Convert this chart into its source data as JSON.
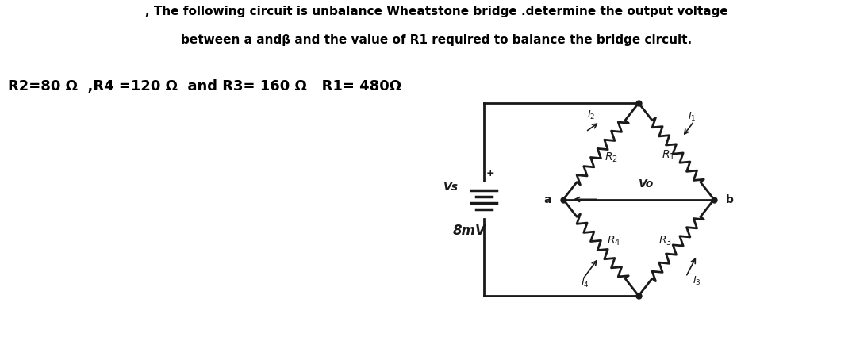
{
  "title_line1": ", The following circuit is unbalance Wheatstone bridge .determine the output voltage",
  "title_line2": "between a andβ and the value of R1 required to balance the bridge circuit.",
  "params_text": "R2=80 Ω  ,R4 =120 Ω  and R3= 160 Ω   R1= 480Ω",
  "bg_color": "#ffffff",
  "circuit_bg": "#f0ede8",
  "cc": "#1a1a1a",
  "vs_label": "Vs",
  "voltage_label": "8mV",
  "vo_label": "Vo",
  "node_a": "a",
  "node_b": "b",
  "r2_label": "R2",
  "r1_label": "R1",
  "r4_label": "R4",
  "r3_label": "R3",
  "i2_label": "I2",
  "i1_label": "I1",
  "i4_label": "I4",
  "i3_label": "I3",
  "title_fontsize": 11,
  "params_fontsize": 13,
  "lw": 2.0
}
